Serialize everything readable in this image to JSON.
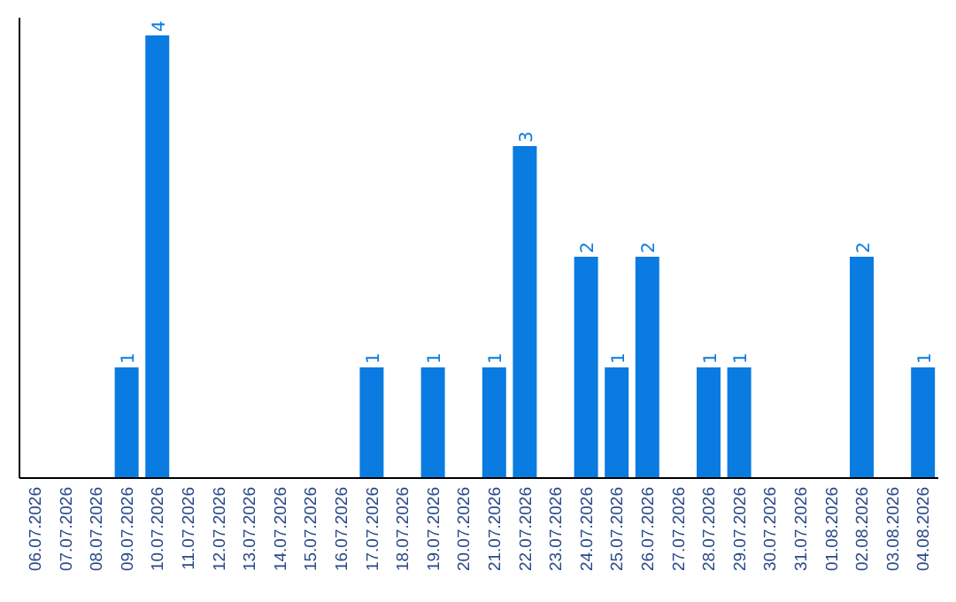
{
  "chart_data": {
    "type": "bar",
    "categories": [
      "06.07.2026",
      "07.07.2026",
      "08.07.2026",
      "09.07.2026",
      "10.07.2026",
      "11.07.2026",
      "12.07.2026",
      "13.07.2026",
      "14.07.2026",
      "15.07.2026",
      "16.07.2026",
      "17.07.2026",
      "18.07.2026",
      "19.07.2026",
      "20.07.2026",
      "21.07.2026",
      "22.07.2026",
      "23.07.2026",
      "24.07.2026",
      "25.07.2026",
      "26.07.2026",
      "27.07.2026",
      "28.07.2026",
      "29.07.2026",
      "30.07.2026",
      "31.07.2026",
      "01.08.2026",
      "02.08.2026",
      "03.08.2026",
      "04.08.2026"
    ],
    "values": [
      0,
      0,
      0,
      1,
      4,
      0,
      0,
      0,
      0,
      0,
      0,
      1,
      0,
      1,
      0,
      1,
      3,
      0,
      2,
      1,
      2,
      0,
      1,
      1,
      0,
      0,
      0,
      2,
      0,
      1
    ],
    "value_labels": [
      null,
      null,
      null,
      "1",
      "4",
      null,
      null,
      null,
      null,
      null,
      null,
      "1",
      null,
      "1",
      null,
      "1",
      "3",
      null,
      "2",
      "1",
      "2",
      null,
      "1",
      "1",
      null,
      null,
      null,
      "2",
      null,
      "1"
    ],
    "color": "#0a7be0"
  }
}
